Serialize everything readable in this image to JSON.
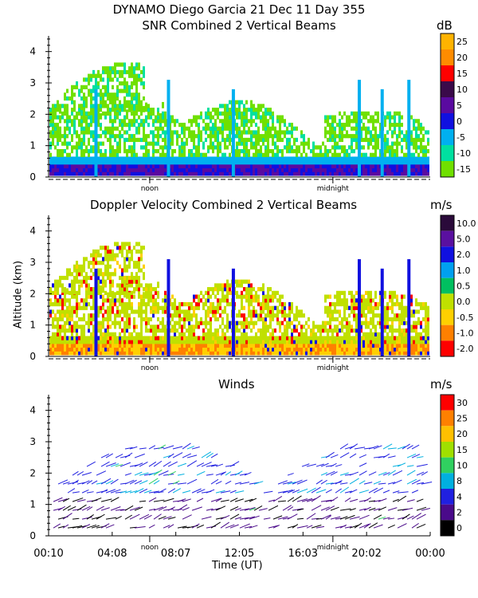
{
  "header": {
    "title_line1": "DYNAMO Diego Garcia  21 Dec 11 Day 355",
    "title_line2": "SNR Combined 2 Vertical Beams"
  },
  "chart_data": [
    {
      "type": "heatmap",
      "title": "SNR Combined 2 Vertical Beams",
      "unit": "dB",
      "ylabel": "",
      "ylim": [
        0,
        4.5
      ],
      "yticks": [
        "0",
        "1",
        "2",
        "3",
        "4"
      ],
      "markers": [
        "noon",
        "midnight"
      ],
      "colorbar": {
        "labels": [
          "25",
          "20",
          "15",
          "10",
          "5",
          "0",
          "-5",
          "-10",
          "-15"
        ],
        "colors": [
          "#ffb300",
          "#ff8c00",
          "#ff0000",
          "#3a0a4a",
          "#5a0aa0",
          "#1010e0",
          "#00b0f0",
          "#00e0a0",
          "#70e000"
        ]
      }
    },
    {
      "type": "heatmap",
      "title": "Doppler Velocity Combined 2 Vertical Beams",
      "unit": "m/s",
      "ylabel": "Altitude (km)",
      "ylim": [
        0,
        4.5
      ],
      "yticks": [
        "0",
        "1",
        "2",
        "3",
        "4"
      ],
      "markers": [
        "noon",
        "midnight"
      ],
      "colorbar": {
        "labels": [
          "10.0",
          "5.0",
          "2.0",
          "1.0",
          "0.5",
          "0.0",
          "-0.5",
          "-1.0",
          "-2.0"
        ],
        "colors": [
          "#2a0a3a",
          "#5a10a0",
          "#1010e0",
          "#00a0f0",
          "#00c060",
          "#c0e000",
          "#ffd000",
          "#ff8000",
          "#ff0000"
        ]
      }
    },
    {
      "type": "scatter",
      "title": "Winds",
      "unit": "m/s",
      "xlabel": "Time (UT)",
      "ylim": [
        0,
        4.5
      ],
      "yticks": [
        "0",
        "1",
        "2",
        "3",
        "4"
      ],
      "xticks": [
        "00:10",
        "04:08",
        "08:07",
        "12:05",
        "16:03",
        "20:02",
        "00:00"
      ],
      "markers": [
        "noon",
        "midnight"
      ],
      "colorbar": {
        "labels": [
          "30",
          "25",
          "20",
          "15",
          "10",
          "8",
          "4",
          "2",
          "0"
        ],
        "colors": [
          "#ff0000",
          "#ff8000",
          "#ffc000",
          "#a0e000",
          "#30d060",
          "#00b0e0",
          "#2020e0",
          "#4a0a8a",
          "#000000"
        ]
      }
    }
  ]
}
